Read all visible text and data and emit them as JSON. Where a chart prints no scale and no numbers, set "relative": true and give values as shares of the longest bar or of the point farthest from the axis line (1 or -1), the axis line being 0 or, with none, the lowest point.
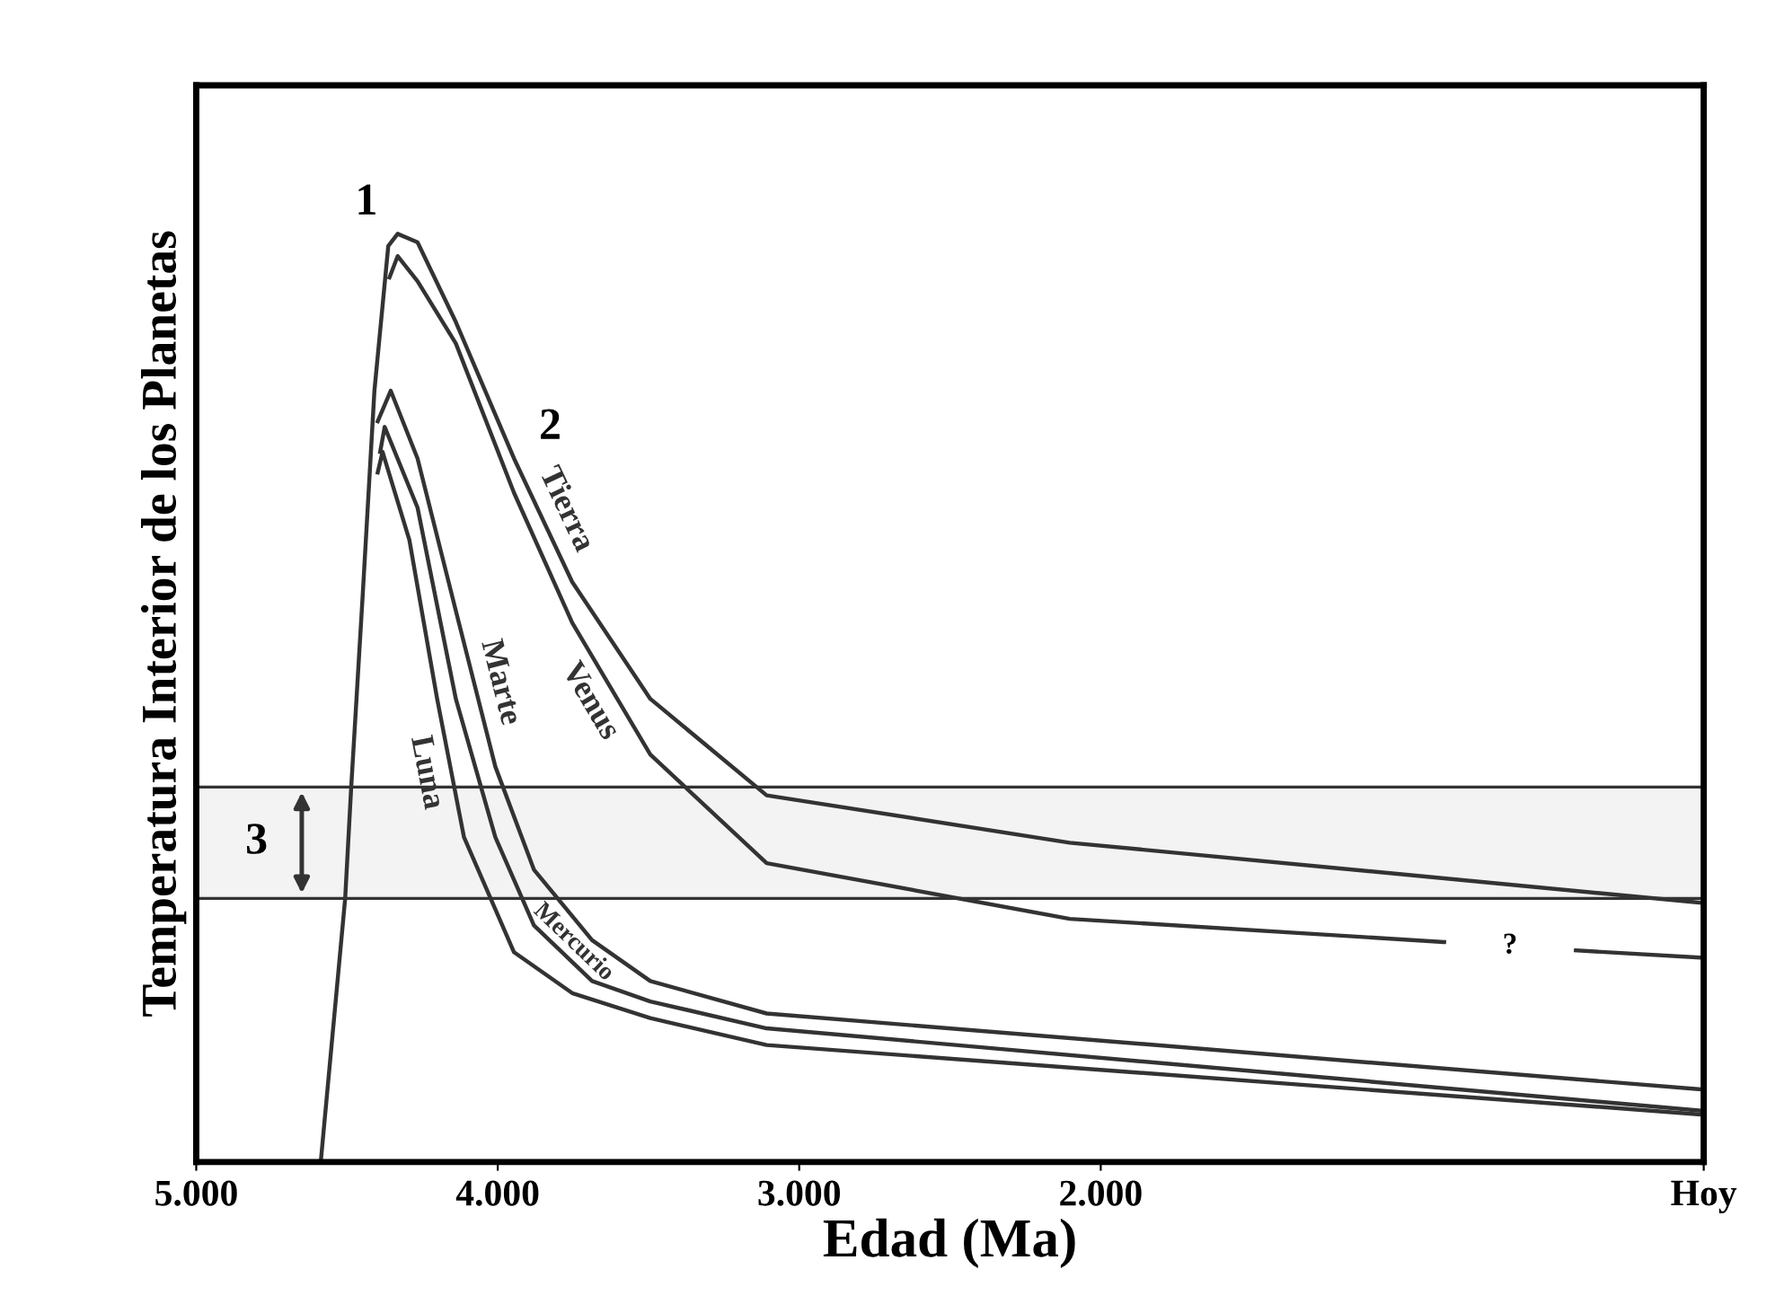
{
  "chart_data": {
    "type": "line",
    "relative": true,
    "xlabel": "Edad (Ma)",
    "ylabel": "Temperatura Interior de los Planetas",
    "xlim": [
      5000,
      0
    ],
    "xticks": [
      {
        "value": 5000,
        "label": "5.000"
      },
      {
        "value": 4000,
        "label": "4.000"
      },
      {
        "value": 3000,
        "label": "3.000"
      },
      {
        "value": 2000,
        "label": "2.000"
      },
      {
        "value": 0,
        "label": "Hoy"
      }
    ],
    "grid": false,
    "legend": false,
    "marker": "none",
    "line_style": "solid",
    "series": [
      {
        "name": "Tierra",
        "color": "#333333",
        "x": [
          4587,
          4506,
          4486,
          4448,
          4409,
          4363,
          4332,
          4266,
          4139,
          3946,
          3753,
          3494,
          3108,
          2103,
          0
        ],
        "values": [
          0,
          0.284,
          0.404,
          0.61,
          0.831,
          0.987,
          1.0,
          0.991,
          0.905,
          0.758,
          0.625,
          0.499,
          0.395,
          0.344,
          0.279
        ]
      },
      {
        "name": "Venus",
        "color": "#333333",
        "x": [
          4359,
          4332,
          4266,
          4139,
          3946,
          3753,
          3494,
          3108,
          2103,
          861,
          642,
          424,
          0
        ],
        "values": [
          0.953,
          0.976,
          0.949,
          0.882,
          0.721,
          0.581,
          0.439,
          0.322,
          0.262,
          0.237,
          null,
          0.228,
          0.22
        ]
      },
      {
        "name": "Marte",
        "color": "#333333",
        "x": [
          4398,
          4355,
          4266,
          4139,
          4008,
          3880,
          3687,
          3494,
          3108,
          0
        ],
        "values": [
          0.798,
          0.831,
          0.758,
          0.594,
          0.426,
          0.315,
          0.239,
          0.195,
          0.16,
          0.078
        ]
      },
      {
        "name": "Mercurio",
        "color": "#333333",
        "x": [
          4390,
          4375,
          4266,
          4139,
          4008,
          3880,
          3687,
          3494,
          3108,
          0
        ],
        "values": [
          0.765,
          0.792,
          0.705,
          0.499,
          0.35,
          0.255,
          0.195,
          0.173,
          0.144,
          0.055
        ]
      },
      {
        "name": "Luna",
        "color": "#333333",
        "x": [
          4398,
          4382,
          4293,
          4201,
          4112,
          3946,
          3753,
          3494,
          3108,
          0
        ],
        "values": [
          0.743,
          0.765,
          0.67,
          0.499,
          0.35,
          0.226,
          0.182,
          0.155,
          0.126,
          0.051
        ]
      }
    ],
    "bands": [
      {
        "axis": "y",
        "from": 0.284,
        "to": 0.404,
        "label": "3",
        "color": "#333333"
      }
    ],
    "annotations": [
      {
        "text": "1",
        "x": 4332,
        "y": 1.0
      },
      {
        "text": "2",
        "x": 3946,
        "y": 0.758
      },
      "?"
    ]
  }
}
